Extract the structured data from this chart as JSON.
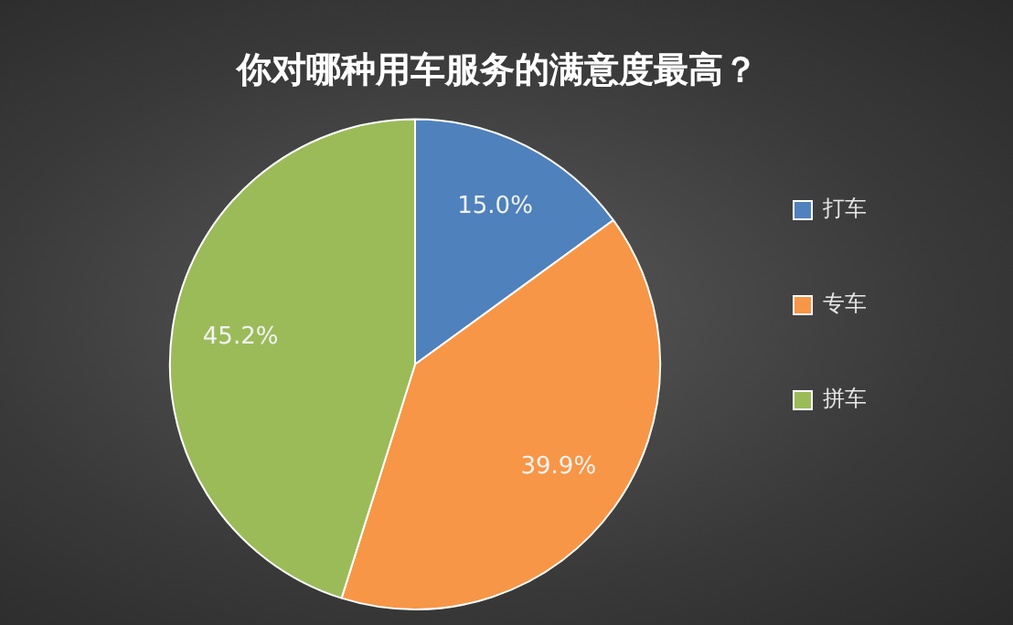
{
  "chart_data": {
    "type": "pie",
    "title": "你对哪种用车服务的满意度最高？",
    "categories": [
      "打车",
      "专车",
      "拼车"
    ],
    "values": [
      15.0,
      39.9,
      45.2
    ],
    "colors": [
      "#4f81bd",
      "#f79646",
      "#9bbb59"
    ],
    "value_labels": [
      "15.0%",
      "39.9%",
      "45.2%"
    ],
    "legend": "right"
  }
}
